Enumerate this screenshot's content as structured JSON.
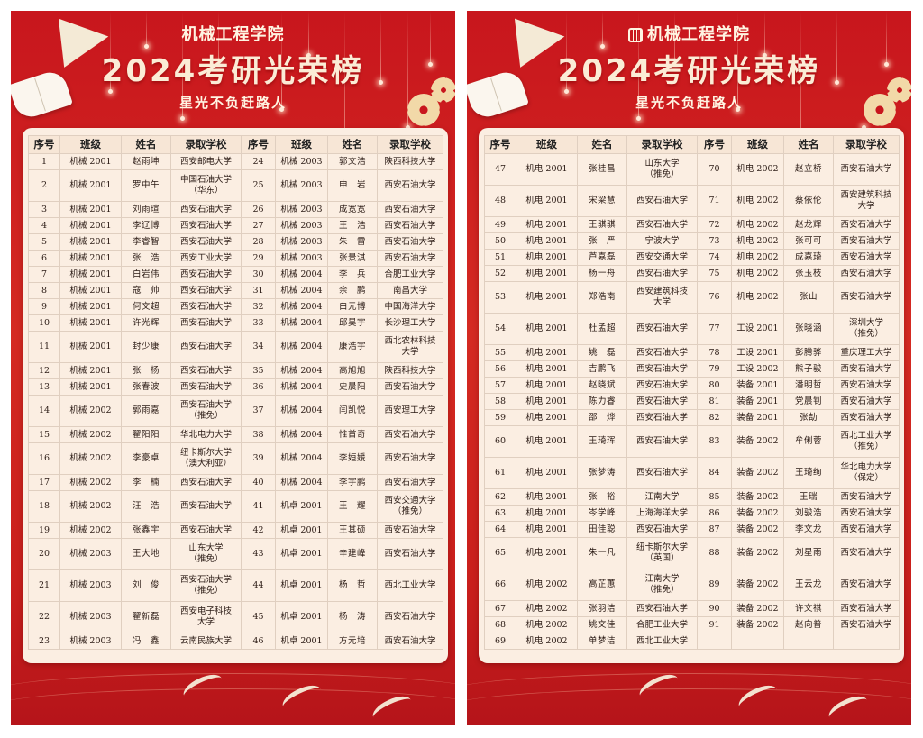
{
  "colors": {
    "background_red": "#c8161d",
    "card": "#fbeee2",
    "title": "#fbecd6"
  },
  "posters": [
    {
      "school_title": "机械工程学院",
      "has_logo": false,
      "main_title": "2024考研光荣榜",
      "subtitle": "星光不负赶路人",
      "headers": [
        "序号",
        "班级",
        "姓名",
        "录取学校",
        "序号",
        "班级",
        "姓名",
        "录取学校"
      ],
      "rows": [
        [
          [
            "1",
            "机械 2001",
            "赵雨坤",
            "西安邮电大学"
          ],
          [
            "24",
            "机械 2003",
            "郭文浩",
            "陕西科技大学"
          ]
        ],
        [
          [
            "2",
            "机械 2001",
            "罗中午",
            "中国石油大学\n（华东）"
          ],
          [
            "25",
            "机械 2003",
            "申　岩",
            "西安石油大学"
          ]
        ],
        [
          [
            "3",
            "机械 2001",
            "刘雨瑄",
            "西安石油大学"
          ],
          [
            "26",
            "机械 2003",
            "成宽宽",
            "西安石油大学"
          ]
        ],
        [
          [
            "4",
            "机械 2001",
            "李辽博",
            "西安石油大学"
          ],
          [
            "27",
            "机械 2003",
            "王　浩",
            "西安石油大学"
          ]
        ],
        [
          [
            "5",
            "机械 2001",
            "李睿智",
            "西安石油大学"
          ],
          [
            "28",
            "机械 2003",
            "朱　雷",
            "西安石油大学"
          ]
        ],
        [
          [
            "6",
            "机械 2001",
            "张　浩",
            "西安工业大学"
          ],
          [
            "29",
            "机械 2003",
            "张景淇",
            "西安石油大学"
          ]
        ],
        [
          [
            "7",
            "机械 2001",
            "白岩伟",
            "西安石油大学"
          ],
          [
            "30",
            "机械 2004",
            "李　兵",
            "合肥工业大学"
          ]
        ],
        [
          [
            "8",
            "机械 2001",
            "寇　帅",
            "西安石油大学"
          ],
          [
            "31",
            "机械 2004",
            "余　鹏",
            "南昌大学"
          ]
        ],
        [
          [
            "9",
            "机械 2001",
            "何文超",
            "西安石油大学"
          ],
          [
            "32",
            "机械 2004",
            "白元博",
            "中国海洋大学"
          ]
        ],
        [
          [
            "10",
            "机械 2001",
            "许光辉",
            "西安石油大学"
          ],
          [
            "33",
            "机械 2004",
            "邱昊宇",
            "长沙理工大学"
          ]
        ],
        [
          [
            "11",
            "机械 2001",
            "封少康",
            "西安石油大学"
          ],
          [
            "34",
            "机械 2004",
            "康浩宇",
            "西北农林科技\n大学"
          ]
        ],
        [
          [
            "12",
            "机械 2001",
            "张　杨",
            "西安石油大学"
          ],
          [
            "35",
            "机械 2004",
            "高旭旭",
            "陕西科技大学"
          ]
        ],
        [
          [
            "13",
            "机械 2001",
            "张春波",
            "西安石油大学"
          ],
          [
            "36",
            "机械 2004",
            "史晨阳",
            "西安石油大学"
          ]
        ],
        [
          [
            "14",
            "机械 2002",
            "郭雨嘉",
            "西安石油大学\n（推免）"
          ],
          [
            "37",
            "机械 2004",
            "闫凯悦",
            "西安理工大学"
          ]
        ],
        [
          [
            "15",
            "机械 2002",
            "翟阳阳",
            "华北电力大学"
          ],
          [
            "38",
            "机械 2004",
            "惟首奇",
            "西安石油大学"
          ]
        ],
        [
          [
            "16",
            "机械 2002",
            "李豪卓",
            "纽卡斯尔大学\n（澳大利亚）"
          ],
          [
            "39",
            "机械 2004",
            "李姮媛",
            "西安石油大学"
          ]
        ],
        [
          [
            "17",
            "机械 2002",
            "李　楠",
            "西安石油大学"
          ],
          [
            "40",
            "机械 2004",
            "李宇鹏",
            "西安石油大学"
          ]
        ],
        [
          [
            "18",
            "机械 2002",
            "汪　浩",
            "西安石油大学"
          ],
          [
            "41",
            "机卓 2001",
            "王　耀",
            "西安交通大学\n（推免）"
          ]
        ],
        [
          [
            "19",
            "机械 2002",
            "张鑫宇",
            "西安石油大学"
          ],
          [
            "42",
            "机卓 2001",
            "王其硕",
            "西安石油大学"
          ]
        ],
        [
          [
            "20",
            "机械 2003",
            "王大地",
            "山东大学\n（推免）"
          ],
          [
            "43",
            "机卓 2001",
            "辛建峰",
            "西安石油大学"
          ]
        ],
        [
          [
            "21",
            "机械 2003",
            "刘　俊",
            "西安石油大学\n（推免）"
          ],
          [
            "44",
            "机卓 2001",
            "杨　哲",
            "西北工业大学"
          ]
        ],
        [
          [
            "22",
            "机械 2003",
            "翟新磊",
            "西安电子科技\n大学"
          ],
          [
            "45",
            "机卓 2001",
            "杨　涛",
            "西安石油大学"
          ]
        ],
        [
          [
            "23",
            "机械 2003",
            "冯　鑫",
            "云南民族大学"
          ],
          [
            "46",
            "机卓 2001",
            "方元培",
            "西安石油大学"
          ]
        ]
      ]
    },
    {
      "school_title": "机械工程学院",
      "has_logo": true,
      "main_title": "2024考研光荣榜",
      "subtitle": "星光不负赶路人",
      "headers": [
        "序号",
        "班级",
        "姓名",
        "录取学校",
        "序号",
        "班级",
        "姓名",
        "录取学校"
      ],
      "rows": [
        [
          [
            "47",
            "机电 2001",
            "张桂昌",
            "山东大学\n（推免）"
          ],
          [
            "70",
            "机电 2002",
            "赵立桥",
            "西安石油大学"
          ]
        ],
        [
          [
            "48",
            "机电 2001",
            "宋梁慧",
            "西安石油大学"
          ],
          [
            "71",
            "机电 2002",
            "蔡依伦",
            "西安建筑科技\n大学"
          ]
        ],
        [
          [
            "49",
            "机电 2001",
            "王骐骐",
            "西安石油大学"
          ],
          [
            "72",
            "机电 2002",
            "赵龙辉",
            "西安石油大学"
          ]
        ],
        [
          [
            "50",
            "机电 2001",
            "张　严",
            "宁波大学"
          ],
          [
            "73",
            "机电 2002",
            "张可可",
            "西安石油大学"
          ]
        ],
        [
          [
            "51",
            "机电 2001",
            "芦嘉磊",
            "西安交通大学"
          ],
          [
            "74",
            "机电 2002",
            "成嘉琦",
            "西安石油大学"
          ]
        ],
        [
          [
            "52",
            "机电 2001",
            "杨一舟",
            "西安石油大学"
          ],
          [
            "75",
            "机电 2002",
            "张玉枝",
            "西安石油大学"
          ]
        ],
        [
          [
            "53",
            "机电 2001",
            "郑浩南",
            "西安建筑科技\n大学"
          ],
          [
            "76",
            "机电 2002",
            "张山",
            "西安石油大学"
          ]
        ],
        [
          [
            "54",
            "机电 2001",
            "杜孟超",
            "西安石油大学"
          ],
          [
            "77",
            "工设 2001",
            "张晓涵",
            "深圳大学\n（推免）"
          ]
        ],
        [
          [
            "55",
            "机电 2001",
            "姚　磊",
            "西安石油大学"
          ],
          [
            "78",
            "工设 2001",
            "彭腾骅",
            "重庆理工大学"
          ]
        ],
        [
          [
            "56",
            "机电 2001",
            "吉鹏飞",
            "西安石油大学"
          ],
          [
            "79",
            "工设 2002",
            "熊子骏",
            "西安石油大学"
          ]
        ],
        [
          [
            "57",
            "机电 2001",
            "赵晓斌",
            "西安石油大学"
          ],
          [
            "80",
            "装备 2001",
            "潘明哲",
            "西安石油大学"
          ]
        ],
        [
          [
            "58",
            "机电 2001",
            "陈力睿",
            "西安石油大学"
          ],
          [
            "81",
            "装备 2001",
            "党晨钊",
            "西安石油大学"
          ]
        ],
        [
          [
            "59",
            "机电 2001",
            "邵　烨",
            "西安石油大学"
          ],
          [
            "82",
            "装备 2001",
            "张劼",
            "西安石油大学"
          ]
        ],
        [
          [
            "60",
            "机电 2001",
            "王琦珲",
            "西安石油大学"
          ],
          [
            "83",
            "装备 2002",
            "牟俐蓉",
            "西北工业大学\n（推免）"
          ]
        ],
        [
          [
            "61",
            "机电 2001",
            "张梦涛",
            "西安石油大学"
          ],
          [
            "84",
            "装备 2002",
            "王琦绚",
            "华北电力大学\n（保定）"
          ]
        ],
        [
          [
            "62",
            "机电 2001",
            "张　裕",
            "江南大学"
          ],
          [
            "85",
            "装备 2002",
            "王瑞",
            "西安石油大学"
          ]
        ],
        [
          [
            "63",
            "机电 2001",
            "岑学峰",
            "上海海洋大学"
          ],
          [
            "86",
            "装备 2002",
            "刘骏浩",
            "西安石油大学"
          ]
        ],
        [
          [
            "64",
            "机电 2001",
            "田佳聪",
            "西安石油大学"
          ],
          [
            "87",
            "装备 2002",
            "李文龙",
            "西安石油大学"
          ]
        ],
        [
          [
            "65",
            "机电 2001",
            "朱一凡",
            "纽卡斯尔大学\n（英国）"
          ],
          [
            "88",
            "装备 2002",
            "刘星雨",
            "西安石油大学"
          ]
        ],
        [
          [
            "66",
            "机电 2002",
            "高芷蕙",
            "江南大学\n（推免）"
          ],
          [
            "89",
            "装备 2002",
            "王云龙",
            "西安石油大学"
          ]
        ],
        [
          [
            "67",
            "机电 2002",
            "张羽洁",
            "西安石油大学"
          ],
          [
            "90",
            "装备 2002",
            "许文祺",
            "西安石油大学"
          ]
        ],
        [
          [
            "68",
            "机电 2002",
            "姚文佳",
            "合肥工业大学"
          ],
          [
            "91",
            "装备 2002",
            "赵向普",
            "西安石油大学"
          ]
        ],
        [
          [
            "69",
            "机电 2002",
            "单梦洁",
            "西北工业大学"
          ],
          [
            "",
            "",
            "",
            ""
          ]
        ]
      ]
    }
  ]
}
